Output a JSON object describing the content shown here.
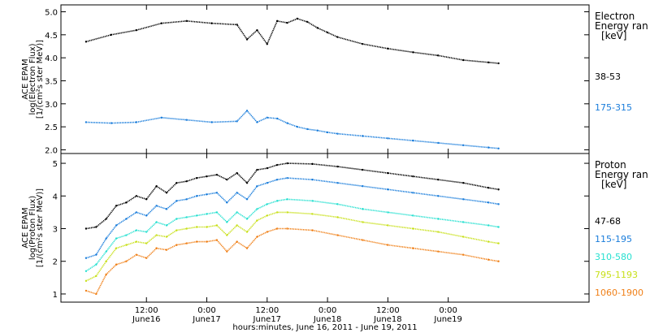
{
  "chart_data": [
    {
      "type": "scatter",
      "panel": "electron",
      "ylabel": [
        "ACE EPAM",
        "log(Electron Flux)",
        "[1/(cm²s ster MeV)]"
      ],
      "ylim": [
        1.92,
        5.15
      ],
      "yticks": [
        "2.0",
        "2.5",
        "3.0",
        "3.5",
        "4.0",
        "4.5",
        "5.0"
      ],
      "legend_title": [
        "Electron",
        "Energy ran",
        "[keV]"
      ],
      "series": [
        {
          "name": "38-53",
          "color": "#000000",
          "x": [
            0,
            5,
            10,
            15,
            20,
            25,
            30,
            32,
            34,
            36,
            38,
            40,
            42,
            44,
            46,
            48,
            50,
            55,
            60,
            65,
            70,
            75,
            80,
            82
          ],
          "y": [
            4.35,
            4.5,
            4.6,
            4.75,
            4.8,
            4.75,
            4.72,
            4.4,
            4.6,
            4.3,
            4.8,
            4.76,
            4.85,
            4.78,
            4.65,
            4.55,
            4.45,
            4.3,
            4.2,
            4.12,
            4.05,
            3.95,
            3.9,
            3.88
          ]
        },
        {
          "name": "175-315",
          "color": "#1a7ddb",
          "x": [
            0,
            5,
            10,
            15,
            20,
            25,
            30,
            32,
            34,
            36,
            38,
            40,
            42,
            44,
            46,
            48,
            50,
            55,
            60,
            65,
            70,
            75,
            80,
            82
          ],
          "y": [
            2.6,
            2.58,
            2.6,
            2.7,
            2.65,
            2.6,
            2.62,
            2.85,
            2.6,
            2.7,
            2.68,
            2.58,
            2.5,
            2.45,
            2.42,
            2.38,
            2.35,
            2.3,
            2.25,
            2.2,
            2.15,
            2.1,
            2.05,
            2.03
          ]
        }
      ]
    },
    {
      "type": "scatter",
      "panel": "proton",
      "ylabel": [
        "ACE EPAM",
        "log(Proton Flux)",
        "[1/(cm²s ster MeV)]"
      ],
      "ylim": [
        0.75,
        5.3
      ],
      "yticks": [
        "1",
        "2",
        "3",
        "4",
        "5"
      ],
      "legend_title": [
        "Proton",
        "Energy ran",
        "[keV]"
      ],
      "series": [
        {
          "name": "47-68",
          "color": "#000000",
          "x": [
            0,
            2,
            4,
            6,
            8,
            10,
            12,
            14,
            16,
            18,
            20,
            22,
            24,
            26,
            28,
            30,
            32,
            34,
            36,
            38,
            40,
            45,
            50,
            55,
            60,
            65,
            70,
            75,
            80,
            82
          ],
          "y": [
            3.0,
            3.05,
            3.3,
            3.7,
            3.8,
            4.0,
            3.9,
            4.3,
            4.1,
            4.4,
            4.45,
            4.55,
            4.6,
            4.65,
            4.5,
            4.7,
            4.4,
            4.8,
            4.85,
            4.95,
            5.0,
            4.98,
            4.9,
            4.8,
            4.7,
            4.6,
            4.5,
            4.4,
            4.25,
            4.2
          ]
        },
        {
          "name": "115-195",
          "color": "#1a7ddb",
          "x": [
            0,
            2,
            4,
            6,
            8,
            10,
            12,
            14,
            16,
            18,
            20,
            22,
            24,
            26,
            28,
            30,
            32,
            34,
            36,
            38,
            40,
            45,
            50,
            55,
            60,
            65,
            70,
            75,
            80,
            82
          ],
          "y": [
            2.1,
            2.2,
            2.7,
            3.1,
            3.3,
            3.5,
            3.4,
            3.7,
            3.6,
            3.85,
            3.9,
            4.0,
            4.05,
            4.1,
            3.8,
            4.1,
            3.9,
            4.3,
            4.4,
            4.5,
            4.55,
            4.5,
            4.4,
            4.3,
            4.2,
            4.1,
            4.0,
            3.9,
            3.8,
            3.75
          ]
        },
        {
          "name": "310-580",
          "color": "#26e0d0",
          "x": [
            0,
            2,
            4,
            6,
            8,
            10,
            12,
            14,
            16,
            18,
            20,
            22,
            24,
            26,
            28,
            30,
            32,
            34,
            36,
            38,
            40,
            45,
            50,
            55,
            60,
            65,
            70,
            75,
            80,
            82
          ],
          "y": [
            1.7,
            1.9,
            2.3,
            2.7,
            2.8,
            2.95,
            2.9,
            3.2,
            3.1,
            3.3,
            3.35,
            3.4,
            3.45,
            3.5,
            3.2,
            3.5,
            3.3,
            3.6,
            3.75,
            3.85,
            3.9,
            3.85,
            3.75,
            3.6,
            3.5,
            3.4,
            3.3,
            3.2,
            3.1,
            3.05
          ]
        },
        {
          "name": "795-1193",
          "color": "#c8e01a",
          "x": [
            0,
            2,
            4,
            6,
            8,
            10,
            12,
            14,
            16,
            18,
            20,
            22,
            24,
            26,
            28,
            30,
            32,
            34,
            36,
            38,
            40,
            45,
            50,
            55,
            60,
            65,
            70,
            75,
            80,
            82
          ],
          "y": [
            1.4,
            1.55,
            2.0,
            2.4,
            2.5,
            2.6,
            2.55,
            2.8,
            2.75,
            2.95,
            3.0,
            3.05,
            3.05,
            3.1,
            2.8,
            3.1,
            2.9,
            3.25,
            3.4,
            3.5,
            3.5,
            3.45,
            3.35,
            3.2,
            3.1,
            3.0,
            2.9,
            2.75,
            2.6,
            2.55
          ]
        },
        {
          "name": "1060-1900",
          "color": "#f08018",
          "x": [
            0,
            2,
            4,
            6,
            8,
            10,
            12,
            14,
            16,
            18,
            20,
            22,
            24,
            26,
            28,
            30,
            32,
            34,
            36,
            38,
            40,
            45,
            50,
            55,
            60,
            65,
            70,
            75,
            80,
            82
          ],
          "y": [
            1.1,
            1.0,
            1.6,
            1.9,
            2.0,
            2.2,
            2.1,
            2.4,
            2.35,
            2.5,
            2.55,
            2.6,
            2.6,
            2.65,
            2.3,
            2.6,
            2.4,
            2.75,
            2.9,
            3.0,
            3.0,
            2.95,
            2.8,
            2.65,
            2.5,
            2.4,
            2.3,
            2.2,
            2.05,
            2.0
          ]
        }
      ]
    }
  ],
  "xaxis": {
    "xlim": [
      -5,
      100
    ],
    "ticks": [
      {
        "x": 12,
        "time": "12:00",
        "date": "June16"
      },
      {
        "x": 24,
        "time": "0:00",
        "date": "June17"
      },
      {
        "x": 36,
        "time": "12:00",
        "date": "June17"
      },
      {
        "x": 48,
        "time": "0:00",
        "date": "June18"
      },
      {
        "x": 60,
        "time": "12:00",
        "date": "June18"
      },
      {
        "x": 72,
        "time": "0:00",
        "date": "June19"
      }
    ],
    "title": "hours:minutes, June 16, 2011 - June 19, 2011"
  }
}
